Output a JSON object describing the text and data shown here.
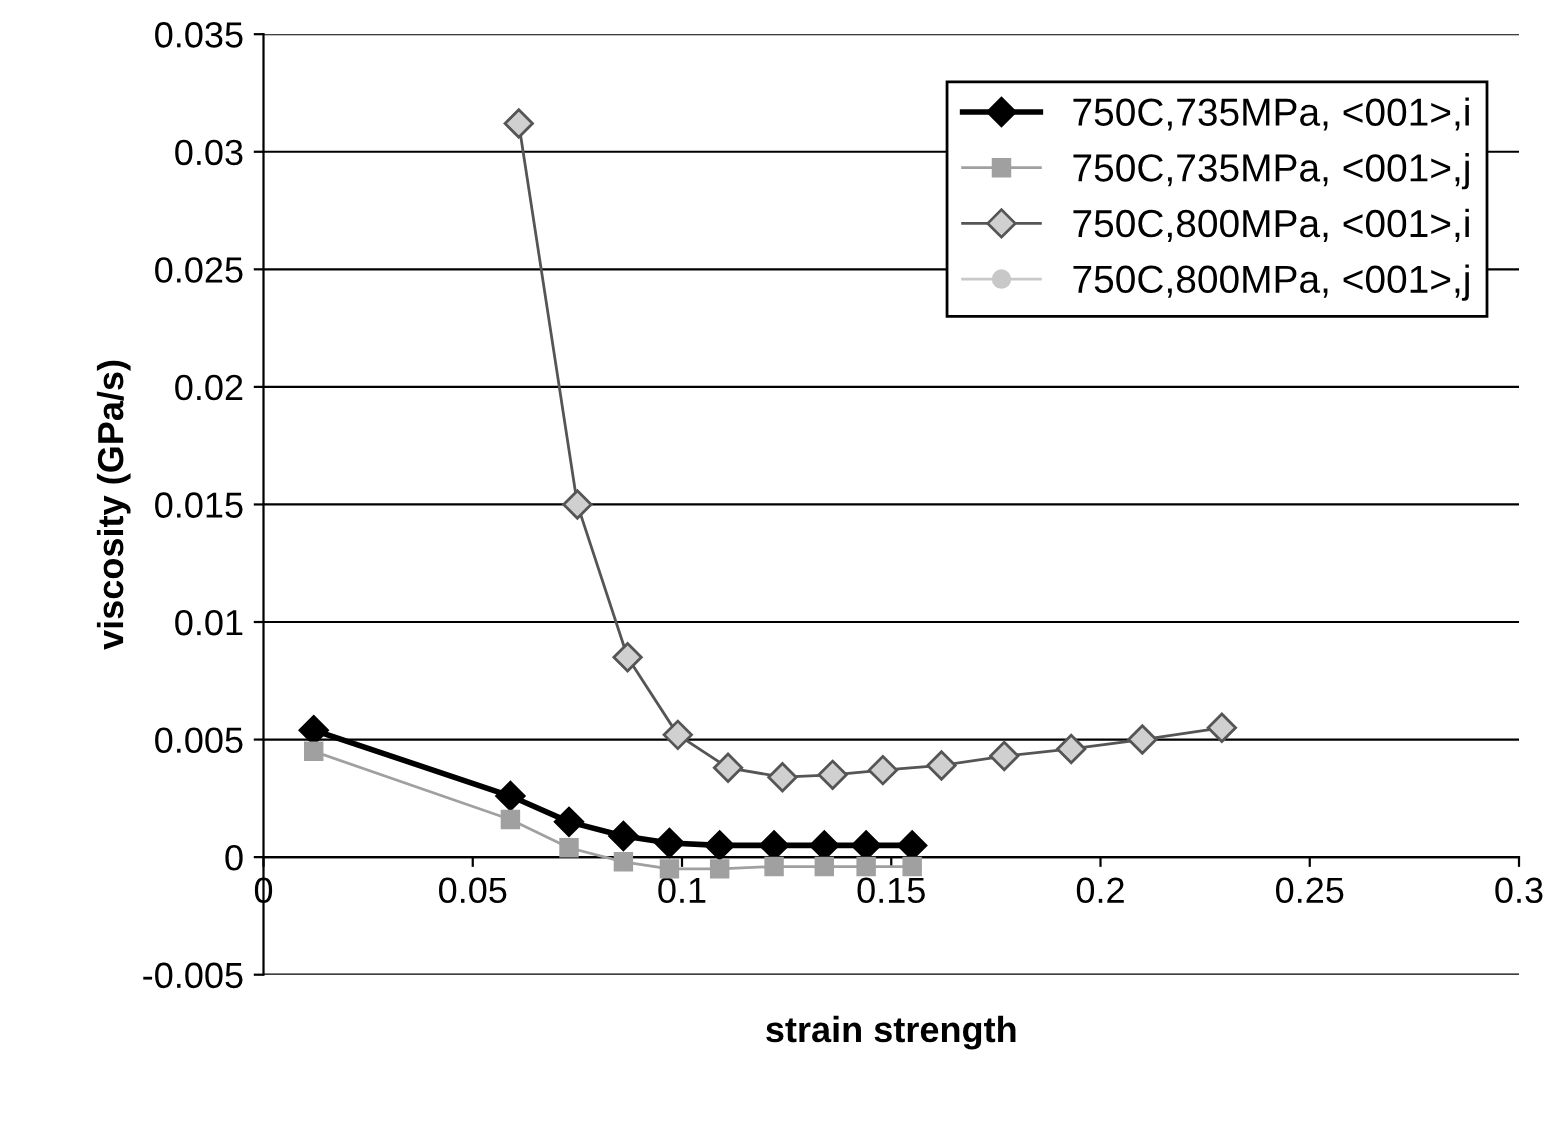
{
  "chart_data": {
    "type": "line",
    "xlabel": "strain strength",
    "ylabel": "viscosity (GPa/s)",
    "xlim": [
      0,
      0.3
    ],
    "xticks": [
      0,
      0.05,
      0.1,
      0.15,
      0.2,
      0.25,
      0.3
    ],
    "ylim": [
      -0.005,
      0.035
    ],
    "yticks": [
      -0.005,
      0,
      0.005,
      0.01,
      0.015,
      0.02,
      0.025,
      0.03,
      0.035
    ],
    "grid": "y",
    "legend": "top right",
    "line_style": "solid",
    "series": [
      {
        "name": "750C,735MPa, <001>,i",
        "color": "#000000",
        "marker": "diamond",
        "x": [
          0.012,
          0.059,
          0.073,
          0.086,
          0.097,
          0.109,
          0.122,
          0.134,
          0.144,
          0.155
        ],
        "values": [
          0.0054,
          0.0026,
          0.0015,
          0.0009,
          0.0006,
          0.0005,
          0.0005,
          0.0005,
          0.0005,
          0.0005
        ]
      },
      {
        "name": "750C,735MPa, <001>,j",
        "color": "#a0a0a0",
        "marker": "square",
        "x": [
          0.012,
          0.059,
          0.073,
          0.086,
          0.097,
          0.109,
          0.122,
          0.134,
          0.144,
          0.155
        ],
        "values": [
          0.0045,
          0.0016,
          0.0004,
          -0.0002,
          -0.0005,
          -0.0005,
          -0.0004,
          -0.0004,
          -0.0004,
          -0.0004
        ]
      },
      {
        "name": "750C,800MPa, <001>,i",
        "color": "#555555",
        "marker": "diamond",
        "x": [
          0.061,
          0.075,
          0.087,
          0.099,
          0.111,
          0.124,
          0.136,
          0.148,
          0.162,
          0.177,
          0.193,
          0.21,
          0.229
        ],
        "values": [
          0.0312,
          0.015,
          0.0085,
          0.0052,
          0.0038,
          0.0034,
          0.0035,
          0.0037,
          0.0039,
          0.0043,
          0.0046,
          0.005,
          0.0055
        ]
      },
      {
        "name": "750C,800MPa, <001>,j",
        "color": "#c8c8c8",
        "marker": "circle",
        "values": [
          null,
          null,
          null,
          null,
          null,
          null,
          null,
          null,
          null,
          null,
          null,
          null,
          null
        ]
      }
    ]
  }
}
